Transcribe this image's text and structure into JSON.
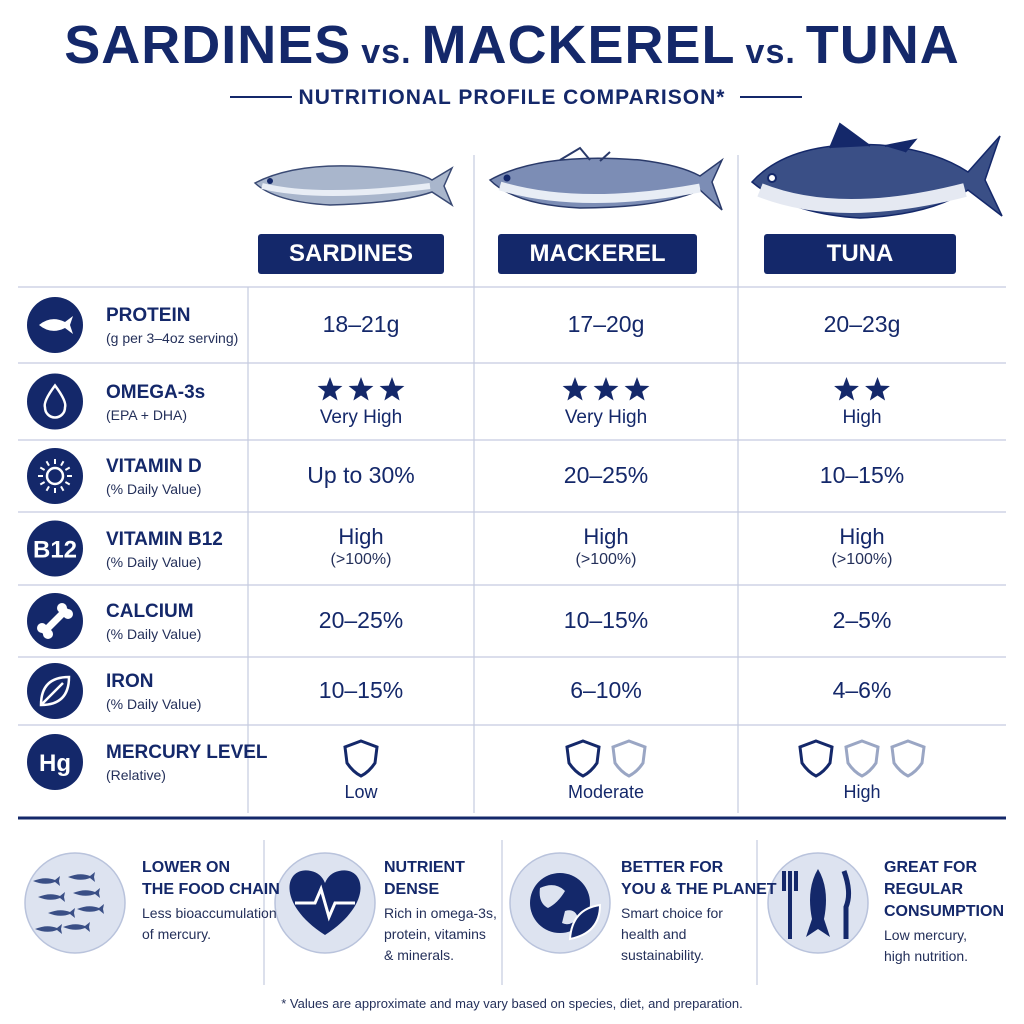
{
  "header": {
    "title": [
      "SARDINES",
      "vs.",
      "MACKEREL",
      "vs.",
      "TUNA"
    ],
    "subtitle": "NUTRITIONAL PROFILE COMPARISON*"
  },
  "table": {
    "columns": [
      "SARDINES",
      "MACKEREL",
      "TUNA"
    ],
    "rows": [
      {
        "label": "PROTEIN",
        "sublabel": "(g per 3–4oz serving)",
        "cells": [
          {
            "text": "18–21g"
          },
          {
            "text": "17–20g"
          },
          {
            "text": "20–23g"
          }
        ]
      },
      {
        "label": "OMEGA-3s",
        "sublabel": "(EPA + DHA)",
        "cells": [
          {
            "stars": 3,
            "text": "Very High"
          },
          {
            "stars": 3,
            "text": "Very High"
          },
          {
            "stars": 2,
            "text": "High"
          }
        ]
      },
      {
        "label": "VITAMIN D",
        "sublabel": "(% Daily Value)",
        "cells": [
          {
            "text": "Up to 30%"
          },
          {
            "text": "20–25%"
          },
          {
            "text": "10–15%"
          }
        ]
      },
      {
        "label": "VITAMIN B12",
        "sublabel": "(% Daily Value)",
        "icon_text": "B12",
        "cells": [
          {
            "text": "High",
            "sub": "(>100%)"
          },
          {
            "text": "High",
            "sub": "(>100%)"
          },
          {
            "text": "High",
            "sub": "(>100%)"
          }
        ]
      },
      {
        "label": "CALCIUM",
        "sublabel": "(% Daily Value)",
        "cells": [
          {
            "text": "20–25%"
          },
          {
            "text": "10–15%"
          },
          {
            "text": "2–5%"
          }
        ]
      },
      {
        "label": "IRON",
        "sublabel": "(% Daily Value)",
        "cells": [
          {
            "text": "10–15%"
          },
          {
            "text": "6–10%"
          },
          {
            "text": "4–6%"
          }
        ]
      },
      {
        "label": "MERCURY LEVEL",
        "sublabel": "(Relative)",
        "icon_text": "Hg",
        "cells": [
          {
            "shields": 1,
            "text": "Low"
          },
          {
            "shields": 2,
            "text": "Moderate"
          },
          {
            "shields": 3,
            "text": "High"
          }
        ]
      }
    ]
  },
  "features": [
    {
      "title": [
        "LOWER ON",
        "THE FOOD CHAIN"
      ],
      "text": [
        "Less bioaccumulation",
        "of mercury."
      ]
    },
    {
      "title": [
        "NUTRIENT",
        "DENSE"
      ],
      "text": [
        "Rich in omega-3s,",
        "protein, vitamins",
        "& minerals."
      ]
    },
    {
      "title": [
        "BETTER FOR",
        "YOU & THE PLANET"
      ],
      "text": [
        "Smart choice for",
        "health and",
        "sustainability."
      ]
    },
    {
      "title": [
        "GREAT FOR",
        "REGULAR",
        "CONSUMPTION"
      ],
      "text": [
        "Low mercury,",
        "high nutrition."
      ]
    }
  ],
  "footnote": "* Values are approximate and may vary based on species, diet, and preparation."
}
